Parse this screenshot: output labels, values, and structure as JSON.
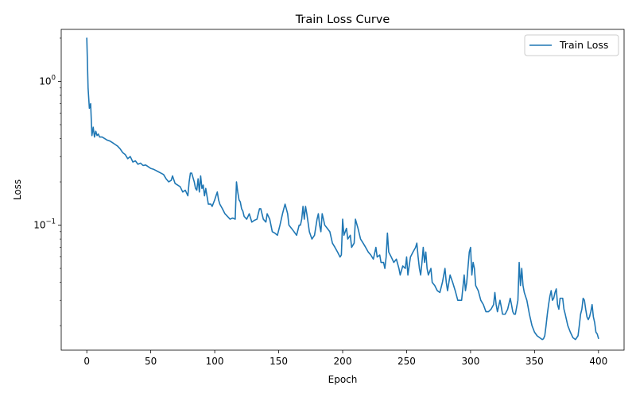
{
  "chart_data": {
    "type": "line",
    "title": "Train Loss Curve",
    "xlabel": "Epoch",
    "ylabel": "Loss",
    "xlim": [
      -20,
      420
    ],
    "ylim": [
      0.0135,
      2.3
    ],
    "yscale": "log",
    "grid": false,
    "legend_position": "top-right",
    "x_ticks": [
      {
        "value": 0,
        "label": "0"
      },
      {
        "value": 50,
        "label": "50"
      },
      {
        "value": 100,
        "label": "100"
      },
      {
        "value": 150,
        "label": "150"
      },
      {
        "value": 200,
        "label": "200"
      },
      {
        "value": 250,
        "label": "250"
      },
      {
        "value": 300,
        "label": "300"
      },
      {
        "value": 350,
        "label": "350"
      },
      {
        "value": 400,
        "label": "400"
      }
    ],
    "y_ticks": [
      {
        "value": 1.0,
        "base": "10",
        "exp": "0"
      },
      {
        "value": 0.1,
        "base": "10",
        "exp": "−1"
      }
    ],
    "y_minor_ticks": [
      0.02,
      0.03,
      0.04,
      0.05,
      0.06,
      0.07,
      0.08,
      0.09,
      0.2,
      0.3,
      0.4,
      0.5,
      0.6,
      0.7,
      0.8,
      0.9,
      2.0
    ],
    "series": [
      {
        "name": "Train Loss",
        "color": "#1f77b4",
        "points": [
          [
            0,
            2.0
          ],
          [
            1,
            0.9
          ],
          [
            2,
            0.65
          ],
          [
            3,
            0.7
          ],
          [
            4,
            0.42
          ],
          [
            5,
            0.48
          ],
          [
            6,
            0.41
          ],
          [
            7,
            0.45
          ],
          [
            8,
            0.42
          ],
          [
            9,
            0.43
          ],
          [
            10,
            0.41
          ],
          [
            12,
            0.41
          ],
          [
            14,
            0.4
          ],
          [
            16,
            0.39
          ],
          [
            18,
            0.385
          ],
          [
            20,
            0.375
          ],
          [
            22,
            0.365
          ],
          [
            24,
            0.355
          ],
          [
            26,
            0.34
          ],
          [
            28,
            0.32
          ],
          [
            30,
            0.31
          ],
          [
            32,
            0.29
          ],
          [
            34,
            0.3
          ],
          [
            36,
            0.275
          ],
          [
            38,
            0.28
          ],
          [
            40,
            0.265
          ],
          [
            42,
            0.27
          ],
          [
            44,
            0.26
          ],
          [
            46,
            0.262
          ],
          [
            48,
            0.255
          ],
          [
            50,
            0.248
          ],
          [
            52,
            0.245
          ],
          [
            54,
            0.24
          ],
          [
            56,
            0.235
          ],
          [
            58,
            0.23
          ],
          [
            60,
            0.225
          ],
          [
            62,
            0.21
          ],
          [
            64,
            0.2
          ],
          [
            66,
            0.205
          ],
          [
            67,
            0.22
          ],
          [
            69,
            0.195
          ],
          [
            71,
            0.19
          ],
          [
            73,
            0.185
          ],
          [
            75,
            0.17
          ],
          [
            77,
            0.175
          ],
          [
            79,
            0.16
          ],
          [
            80,
            0.2
          ],
          [
            81,
            0.23
          ],
          [
            82,
            0.23
          ],
          [
            84,
            0.2
          ],
          [
            85,
            0.18
          ],
          [
            86,
            0.175
          ],
          [
            87,
            0.21
          ],
          [
            88,
            0.17
          ],
          [
            89,
            0.22
          ],
          [
            90,
            0.18
          ],
          [
            91,
            0.19
          ],
          [
            92,
            0.16
          ],
          [
            93,
            0.18
          ],
          [
            95,
            0.14
          ],
          [
            97,
            0.14
          ],
          [
            98,
            0.135
          ],
          [
            100,
            0.15
          ],
          [
            101,
            0.16
          ],
          [
            102,
            0.17
          ],
          [
            103,
            0.15
          ],
          [
            104,
            0.14
          ],
          [
            106,
            0.13
          ],
          [
            108,
            0.12
          ],
          [
            110,
            0.115
          ],
          [
            112,
            0.11
          ],
          [
            114,
            0.112
          ],
          [
            116,
            0.11
          ],
          [
            117,
            0.2
          ],
          [
            118,
            0.17
          ],
          [
            119,
            0.15
          ],
          [
            120,
            0.145
          ],
          [
            121,
            0.13
          ],
          [
            122,
            0.125
          ],
          [
            123,
            0.115
          ],
          [
            125,
            0.11
          ],
          [
            127,
            0.12
          ],
          [
            129,
            0.105
          ],
          [
            131,
            0.108
          ],
          [
            133,
            0.11
          ],
          [
            135,
            0.13
          ],
          [
            136,
            0.13
          ],
          [
            138,
            0.11
          ],
          [
            140,
            0.105
          ],
          [
            141,
            0.12
          ],
          [
            143,
            0.11
          ],
          [
            145,
            0.09
          ],
          [
            147,
            0.088
          ],
          [
            149,
            0.085
          ],
          [
            151,
            0.1
          ],
          [
            153,
            0.12
          ],
          [
            154,
            0.13
          ],
          [
            155,
            0.14
          ],
          [
            157,
            0.12
          ],
          [
            158,
            0.1
          ],
          [
            160,
            0.095
          ],
          [
            162,
            0.09
          ],
          [
            164,
            0.085
          ],
          [
            166,
            0.1
          ],
          [
            167,
            0.1
          ],
          [
            168,
            0.11
          ],
          [
            169,
            0.135
          ],
          [
            170,
            0.11
          ],
          [
            171,
            0.135
          ],
          [
            172,
            0.12
          ],
          [
            174,
            0.09
          ],
          [
            176,
            0.08
          ],
          [
            178,
            0.085
          ],
          [
            180,
            0.11
          ],
          [
            181,
            0.12
          ],
          [
            182,
            0.1
          ],
          [
            183,
            0.09
          ],
          [
            184,
            0.12
          ],
          [
            185,
            0.11
          ],
          [
            186,
            0.1
          ],
          [
            188,
            0.095
          ],
          [
            190,
            0.09
          ],
          [
            192,
            0.075
          ],
          [
            194,
            0.07
          ],
          [
            196,
            0.065
          ],
          [
            198,
            0.06
          ],
          [
            199,
            0.062
          ],
          [
            200,
            0.11
          ],
          [
            201,
            0.085
          ],
          [
            202,
            0.09
          ],
          [
            203,
            0.095
          ],
          [
            204,
            0.08
          ],
          [
            206,
            0.085
          ],
          [
            207,
            0.07
          ],
          [
            209,
            0.075
          ],
          [
            210,
            0.11
          ],
          [
            212,
            0.095
          ],
          [
            214,
            0.08
          ],
          [
            216,
            0.075
          ],
          [
            218,
            0.07
          ],
          [
            220,
            0.065
          ],
          [
            222,
            0.062
          ],
          [
            224,
            0.058
          ],
          [
            226,
            0.07
          ],
          [
            227,
            0.06
          ],
          [
            229,
            0.062
          ],
          [
            230,
            0.055
          ],
          [
            232,
            0.055
          ],
          [
            233,
            0.05
          ],
          [
            234,
            0.06
          ],
          [
            235,
            0.088
          ],
          [
            236,
            0.065
          ],
          [
            238,
            0.06
          ],
          [
            240,
            0.055
          ],
          [
            242,
            0.058
          ],
          [
            244,
            0.05
          ],
          [
            245,
            0.045
          ],
          [
            247,
            0.052
          ],
          [
            249,
            0.05
          ],
          [
            250,
            0.06
          ],
          [
            251,
            0.045
          ],
          [
            253,
            0.06
          ],
          [
            255,
            0.065
          ],
          [
            257,
            0.07
          ],
          [
            258,
            0.075
          ],
          [
            259,
            0.06
          ],
          [
            260,
            0.05
          ],
          [
            261,
            0.045
          ],
          [
            262,
            0.055
          ],
          [
            263,
            0.07
          ],
          [
            264,
            0.055
          ],
          [
            265,
            0.065
          ],
          [
            266,
            0.05
          ],
          [
            267,
            0.045
          ],
          [
            269,
            0.05
          ],
          [
            270,
            0.04
          ],
          [
            272,
            0.038
          ],
          [
            274,
            0.035
          ],
          [
            276,
            0.034
          ],
          [
            278,
            0.04
          ],
          [
            280,
            0.05
          ],
          [
            281,
            0.04
          ],
          [
            282,
            0.035
          ],
          [
            284,
            0.045
          ],
          [
            286,
            0.04
          ],
          [
            288,
            0.035
          ],
          [
            290,
            0.03
          ],
          [
            291,
            0.03
          ],
          [
            293,
            0.03
          ],
          [
            295,
            0.045
          ],
          [
            296,
            0.035
          ],
          [
            297,
            0.04
          ],
          [
            299,
            0.065
          ],
          [
            300,
            0.07
          ],
          [
            301,
            0.045
          ],
          [
            302,
            0.055
          ],
          [
            303,
            0.05
          ],
          [
            304,
            0.038
          ],
          [
            306,
            0.035
          ],
          [
            308,
            0.03
          ],
          [
            310,
            0.028
          ],
          [
            312,
            0.025
          ],
          [
            314,
            0.025
          ],
          [
            316,
            0.026
          ],
          [
            318,
            0.028
          ],
          [
            319,
            0.034
          ],
          [
            320,
            0.028
          ],
          [
            321,
            0.025
          ],
          [
            323,
            0.03
          ],
          [
            324,
            0.027
          ],
          [
            325,
            0.024
          ],
          [
            327,
            0.024
          ],
          [
            329,
            0.026
          ],
          [
            331,
            0.031
          ],
          [
            332,
            0.028
          ],
          [
            333,
            0.025
          ],
          [
            334,
            0.024
          ],
          [
            335,
            0.024
          ],
          [
            337,
            0.03
          ],
          [
            338,
            0.055
          ],
          [
            339,
            0.038
          ],
          [
            340,
            0.05
          ],
          [
            341,
            0.038
          ],
          [
            342,
            0.034
          ],
          [
            344,
            0.03
          ],
          [
            346,
            0.024
          ],
          [
            348,
            0.02
          ],
          [
            350,
            0.018
          ],
          [
            352,
            0.017
          ],
          [
            354,
            0.0165
          ],
          [
            356,
            0.016
          ],
          [
            357,
            0.0162
          ],
          [
            358,
            0.017
          ],
          [
            359,
            0.02
          ],
          [
            360,
            0.024
          ],
          [
            361,
            0.028
          ],
          [
            362,
            0.032
          ],
          [
            363,
            0.035
          ],
          [
            364,
            0.03
          ],
          [
            365,
            0.031
          ],
          [
            366,
            0.034
          ],
          [
            367,
            0.036
          ],
          [
            368,
            0.028
          ],
          [
            369,
            0.026
          ],
          [
            370,
            0.031
          ],
          [
            372,
            0.031
          ],
          [
            373,
            0.026
          ],
          [
            374,
            0.024
          ],
          [
            376,
            0.02
          ],
          [
            378,
            0.018
          ],
          [
            380,
            0.0165
          ],
          [
            382,
            0.016
          ],
          [
            384,
            0.017
          ],
          [
            385,
            0.02
          ],
          [
            386,
            0.024
          ],
          [
            387,
            0.026
          ],
          [
            388,
            0.031
          ],
          [
            389,
            0.03
          ],
          [
            390,
            0.026
          ],
          [
            391,
            0.023
          ],
          [
            392,
            0.022
          ],
          [
            393,
            0.023
          ],
          [
            394,
            0.025
          ],
          [
            395,
            0.028
          ],
          [
            396,
            0.023
          ],
          [
            397,
            0.021
          ],
          [
            398,
            0.018
          ],
          [
            399,
            0.0175
          ],
          [
            400,
            0.0163
          ]
        ]
      }
    ]
  }
}
